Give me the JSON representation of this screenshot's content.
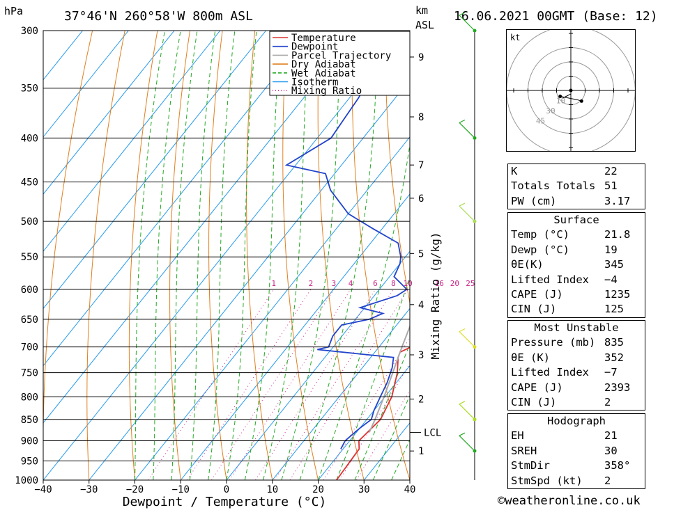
{
  "header": {
    "location": "37°46'N  260°58'W  800m  ASL",
    "datetime": "16.06.2021  00GMT  (Base: 12)",
    "p_unit": "hPa",
    "km_unit": "km",
    "asl_unit": "ASL"
  },
  "chart_data": {
    "type": "line",
    "xlabel": "Dewpoint / Temperature (°C)",
    "ylabel_right": "Mixing Ratio (g/kg)",
    "x_ticks": [
      -40,
      -30,
      -20,
      -10,
      0,
      10,
      20,
      30,
      40
    ],
    "x_tick_labels": [
      "−40",
      "−30",
      "−20",
      "−10",
      "0",
      "10",
      "20",
      "30",
      "40"
    ],
    "xlim": [
      -40,
      40
    ],
    "ylim": [
      1000,
      300
    ],
    "y_scale": "log",
    "p_levels": [
      300,
      350,
      400,
      450,
      500,
      550,
      600,
      650,
      700,
      750,
      800,
      850,
      900,
      950,
      1000
    ],
    "km_ticks": [
      {
        "p": 925,
        "label": "1"
      },
      {
        "p": 805,
        "label": "2"
      },
      {
        "p": 715,
        "label": "3"
      },
      {
        "p": 625,
        "label": "4"
      },
      {
        "p": 545,
        "label": "5"
      },
      {
        "p": 470,
        "label": "6"
      },
      {
        "p": 430,
        "label": "7"
      },
      {
        "p": 378,
        "label": "8"
      },
      {
        "p": 322,
        "label": "9"
      }
    ],
    "lcl": {
      "p": 880,
      "label": "LCL"
    },
    "mixing_ratio_labels": [
      "1",
      "2",
      "3",
      "4",
      "6",
      "8",
      "10",
      "16",
      "20",
      "25"
    ],
    "mixing_ratio_values": [
      1,
      2,
      3,
      4,
      6,
      8,
      10,
      16,
      20,
      25
    ],
    "legend": {
      "placement": "top-right",
      "items": [
        {
          "label": "Temperature",
          "color": "#dd3333",
          "style": "solid"
        },
        {
          "label": "Dewpoint",
          "color": "#2244cc",
          "style": "solid"
        },
        {
          "label": "Parcel Trajectory",
          "color": "#aaaaaa",
          "style": "solid"
        },
        {
          "label": "Dry Adiabat",
          "color": "#e08020",
          "style": "solid"
        },
        {
          "label": "Wet Adiabat",
          "color": "#22aa22",
          "style": "dashed"
        },
        {
          "label": "Isotherm",
          "color": "#2299ee",
          "style": "solid"
        },
        {
          "label": "Mixing Ratio",
          "color": "#cc2288",
          "style": "dotted"
        }
      ]
    },
    "series": [
      {
        "name": "Temperature",
        "color": "#dd3333",
        "points": [
          [
            1000,
            24
          ],
          [
            920,
            23.5
          ],
          [
            900,
            22
          ],
          [
            850,
            23
          ],
          [
            800,
            21.5
          ],
          [
            750,
            18.5
          ],
          [
            720,
            16
          ],
          [
            710,
            15.5
          ],
          [
            700,
            17
          ],
          [
            680,
            21
          ],
          [
            650,
            18
          ],
          [
            620,
            15
          ],
          [
            600,
            14
          ],
          [
            580,
            10.5
          ],
          [
            550,
            7.5
          ],
          [
            520,
            4
          ],
          [
            500,
            0
          ],
          [
            480,
            0
          ],
          [
            460,
            -4
          ],
          [
            450,
            -6
          ],
          [
            420,
            -9.5
          ],
          [
            400,
            -13
          ],
          [
            370,
            -18
          ],
          [
            350,
            -22
          ],
          [
            330,
            -25
          ],
          [
            310,
            -30
          ],
          [
            300,
            -33
          ]
        ]
      },
      {
        "name": "Dewpoint",
        "color": "#2244cc",
        "points": [
          [
            920,
            19.5
          ],
          [
            900,
            19
          ],
          [
            870,
            20
          ],
          [
            850,
            21
          ],
          [
            830,
            20
          ],
          [
            800,
            19
          ],
          [
            770,
            18
          ],
          [
            740,
            16.5
          ],
          [
            720,
            15
          ],
          [
            705,
            -3
          ],
          [
            700,
            -1
          ],
          [
            680,
            -2
          ],
          [
            660,
            -2
          ],
          [
            650,
            3
          ],
          [
            640,
            5
          ],
          [
            630,
            -1
          ],
          [
            610,
            5
          ],
          [
            600,
            6
          ],
          [
            580,
            1
          ],
          [
            560,
            0
          ],
          [
            550,
            -1
          ],
          [
            530,
            -4
          ],
          [
            510,
            -12
          ],
          [
            490,
            -20
          ],
          [
            460,
            -28
          ],
          [
            440,
            -32
          ],
          [
            430,
            -42
          ],
          [
            400,
            -37
          ],
          [
            380,
            -37.5
          ],
          [
            360,
            -38
          ],
          [
            340,
            -39
          ],
          [
            320,
            -40
          ],
          [
            310,
            -44
          ],
          [
            300,
            -47
          ]
        ]
      },
      {
        "name": "Parcel Trajectory",
        "color": "#aaaaaa",
        "points": [
          [
            880,
            22.8
          ],
          [
            850,
            21.8
          ],
          [
            800,
            19.8
          ],
          [
            750,
            17.5
          ],
          [
            700,
            15
          ],
          [
            650,
            12.5
          ],
          [
            600,
            9.5
          ],
          [
            550,
            6.5
          ],
          [
            500,
            2.5
          ],
          [
            450,
            -2.5
          ],
          [
            400,
            -8
          ],
          [
            370,
            -12
          ]
        ]
      }
    ]
  },
  "hodograph": {
    "unit_label": "kt",
    "ring_labels": [
      "10",
      "30",
      "45"
    ],
    "trace_points_kt": [
      [
        0,
        0
      ],
      [
        0,
        -1.5
      ],
      [
        -2,
        -2.5
      ],
      [
        -3,
        -3
      ],
      [
        -4.5,
        -2.5
      ],
      [
        3,
        -4
      ],
      [
        4.5,
        -4.5
      ]
    ]
  },
  "wind_barbs": [
    {
      "p": 300,
      "color": "#22aa22"
    },
    {
      "p": 400,
      "color": "#22aa22"
    },
    {
      "p": 500,
      "color": "#aadd55"
    },
    {
      "p": 700,
      "color": "#dddd22"
    },
    {
      "p": 850,
      "color": "#aadd22"
    },
    {
      "p": 925,
      "color": "#22aa22"
    }
  ],
  "indices": {
    "rows": [
      {
        "label": "K",
        "value": "22"
      },
      {
        "label": "Totals Totals",
        "value": "51"
      },
      {
        "label": "PW (cm)",
        "value": "3.17"
      }
    ]
  },
  "surface": {
    "title": "Surface",
    "rows": [
      {
        "label": "Temp (°C)",
        "value": "21.8"
      },
      {
        "label": "Dewp (°C)",
        "value": "19"
      },
      {
        "label": "θE(K)",
        "value": "345"
      },
      {
        "label": "Lifted Index",
        "value": "−4"
      },
      {
        "label": "CAPE (J)",
        "value": "1235"
      },
      {
        "label": "CIN (J)",
        "value": "125"
      }
    ]
  },
  "most_unstable": {
    "title": "Most Unstable",
    "rows": [
      {
        "label": "Pressure (mb)",
        "value": "835"
      },
      {
        "label": "θE (K)",
        "value": "352"
      },
      {
        "label": "Lifted Index",
        "value": "−7"
      },
      {
        "label": "CAPE (J)",
        "value": "2393"
      },
      {
        "label": "CIN (J)",
        "value": "2"
      }
    ]
  },
  "hodograph_stats": {
    "title": "Hodograph",
    "rows": [
      {
        "label": "EH",
        "value": "21"
      },
      {
        "label": "SREH",
        "value": "30"
      },
      {
        "label": "StmDir",
        "value": "358°"
      },
      {
        "label": "StmSpd (kt)",
        "value": "2"
      }
    ]
  },
  "footer": {
    "copyright": "©weatheronline.co.uk"
  }
}
